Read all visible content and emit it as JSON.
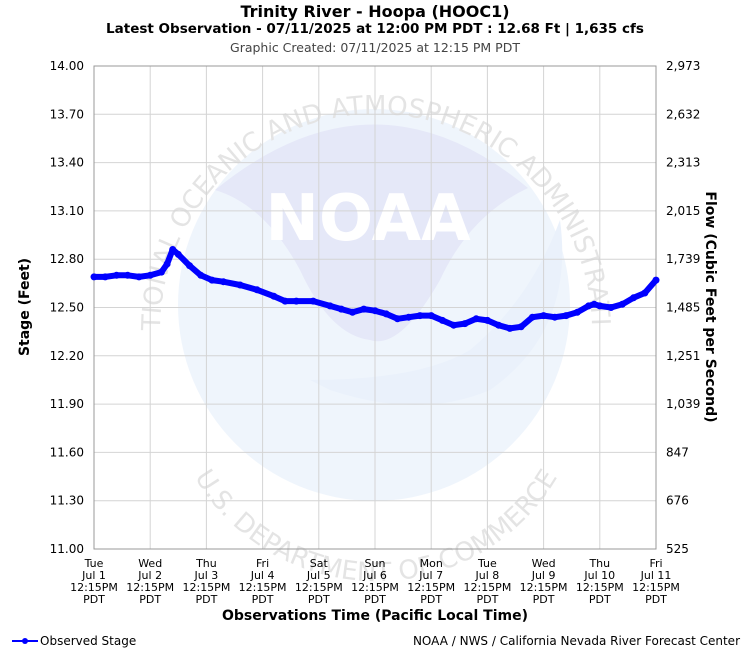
{
  "chart_data": {
    "type": "line",
    "title": "Trinity River - Hoopa (HOOC1)",
    "subtitle": "Latest Observation - 07/11/2025 at 12:00 PM PDT : 12.68 Ft | 1,635 cfs",
    "created": "Graphic Created: 07/11/2025 at 12:15 PM PDT",
    "xlabel": "Observations Time (Pacific Local Time)",
    "ylabel": "Stage (Feet)",
    "y2label": "Flow (Cubic Feet per Second)",
    "ylim": [
      11.0,
      14.0
    ],
    "yticks": [
      "14.00",
      "13.70",
      "13.40",
      "13.10",
      "12.80",
      "12.50",
      "12.20",
      "11.90",
      "11.60",
      "11.30",
      "11.00"
    ],
    "y2ticks": [
      "2,973",
      "2,632",
      "2,313",
      "2,015",
      "1,739",
      "1,485",
      "1,251",
      "1,039",
      "847",
      "676",
      "525"
    ],
    "xlim": [
      0,
      10
    ],
    "xticks": [
      [
        "Tue",
        "Jul 1",
        "12:15PM",
        "PDT"
      ],
      [
        "Wed",
        "Jul 2",
        "12:15PM",
        "PDT"
      ],
      [
        "Thu",
        "Jul 3",
        "12:15PM",
        "PDT"
      ],
      [
        "Fri",
        "Jul 4",
        "12:15PM",
        "PDT"
      ],
      [
        "Sat",
        "Jul 5",
        "12:15PM",
        "PDT"
      ],
      [
        "Sun",
        "Jul 6",
        "12:15PM",
        "PDT"
      ],
      [
        "Mon",
        "Jul 7",
        "12:15PM",
        "PDT"
      ],
      [
        "Tue",
        "Jul 8",
        "12:15PM",
        "PDT"
      ],
      [
        "Wed",
        "Jul 9",
        "12:15PM",
        "PDT"
      ],
      [
        "Thu",
        "Jul 10",
        "12:15PM",
        "PDT"
      ],
      [
        "Fri",
        "Jul 11",
        "12:15PM",
        "PDT"
      ]
    ],
    "grid": true,
    "series": [
      {
        "name": "Observed Stage",
        "color": "#0000ff",
        "x": [
          0,
          0.2,
          0.4,
          0.6,
          0.8,
          1.0,
          1.2,
          1.3,
          1.4,
          1.5,
          1.7,
          1.9,
          2.1,
          2.3,
          2.6,
          2.9,
          3.2,
          3.4,
          3.6,
          3.9,
          4.2,
          4.4,
          4.6,
          4.8,
          5.0,
          5.2,
          5.4,
          5.6,
          5.8,
          6.0,
          6.2,
          6.4,
          6.6,
          6.8,
          7.0,
          7.2,
          7.4,
          7.6,
          7.8,
          8.0,
          8.2,
          8.4,
          8.6,
          8.8,
          8.9,
          9.0,
          9.2,
          9.4,
          9.6,
          9.8,
          10.0
        ],
        "y": [
          12.69,
          12.69,
          12.7,
          12.7,
          12.69,
          12.7,
          12.72,
          12.77,
          12.86,
          12.83,
          12.76,
          12.7,
          12.67,
          12.66,
          12.64,
          12.61,
          12.57,
          12.54,
          12.54,
          12.54,
          12.51,
          12.49,
          12.47,
          12.49,
          12.48,
          12.46,
          12.43,
          12.44,
          12.45,
          12.45,
          12.42,
          12.39,
          12.4,
          12.43,
          12.42,
          12.39,
          12.37,
          12.38,
          12.44,
          12.45,
          12.44,
          12.45,
          12.47,
          12.51,
          12.52,
          12.51,
          12.5,
          12.52,
          12.56,
          12.59,
          12.67
        ]
      }
    ],
    "legend": "bottom-left",
    "credit": "NOAA / NWS / California Nevada River Forecast Center",
    "watermark": {
      "text_top": "NATIONAL OCEANIC AND ATMOSPHERIC ADMINISTRATION",
      "text_bottom": "U.S. DEPARTMENT OF COMMERCE",
      "logo": "NOAA"
    }
  }
}
